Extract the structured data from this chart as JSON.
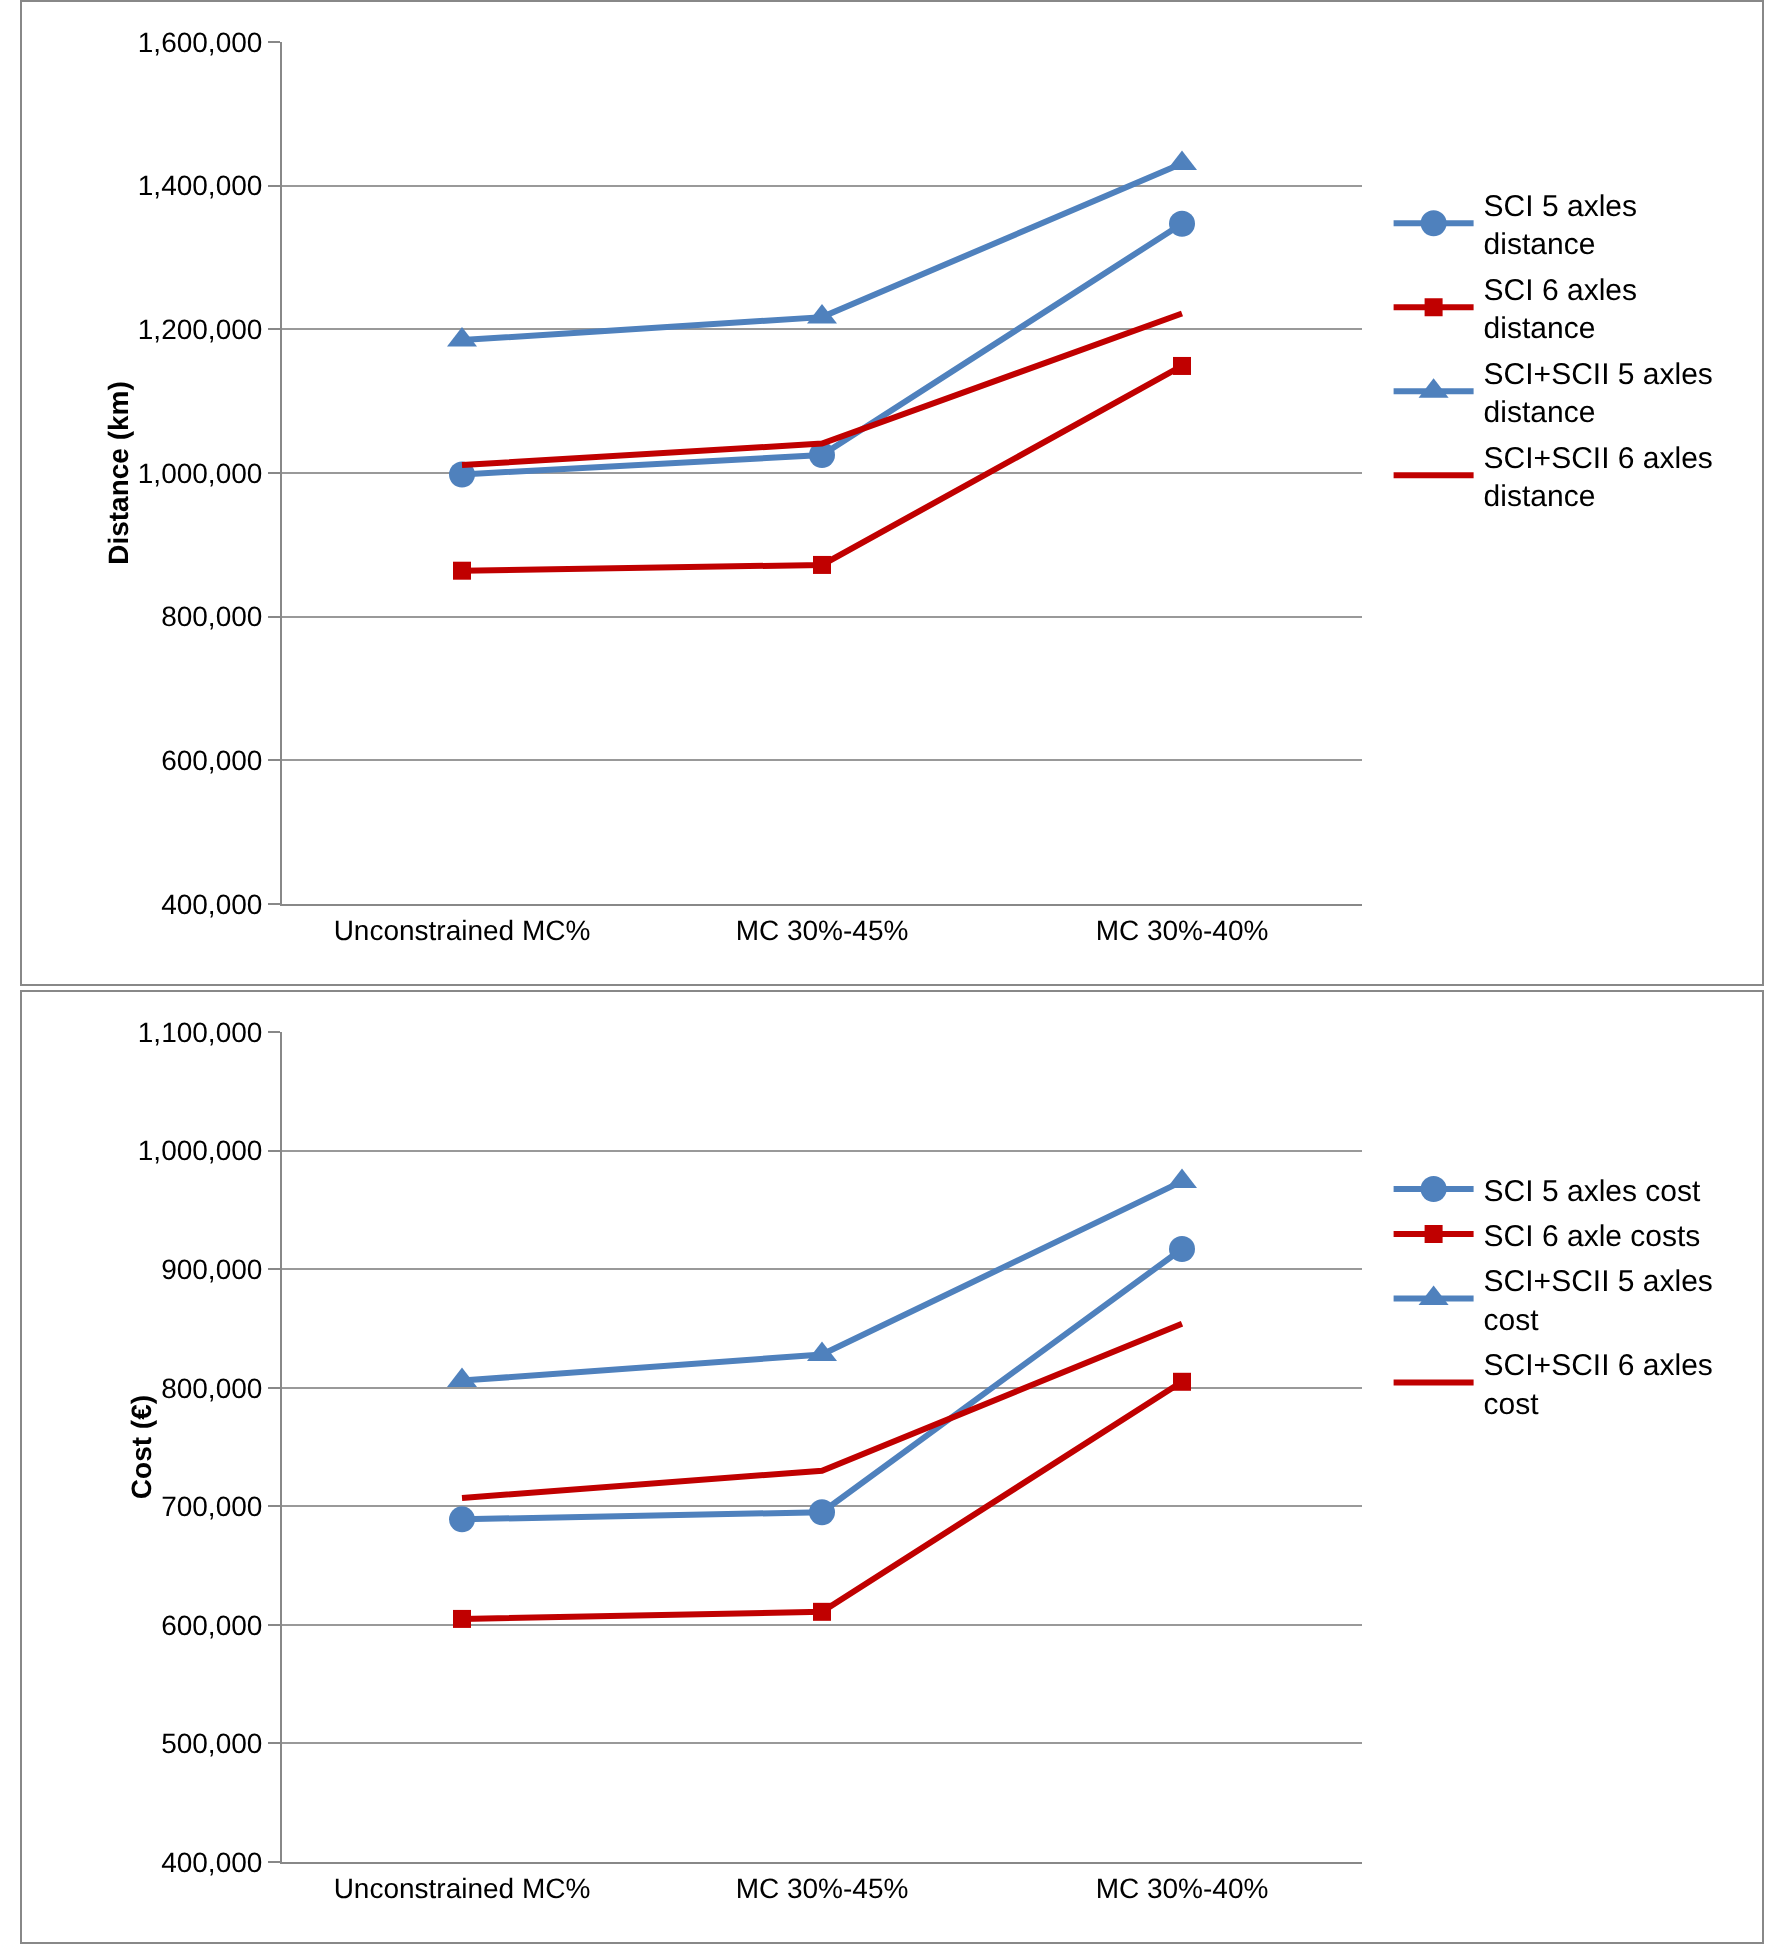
{
  "chart_data": [
    {
      "type": "line",
      "ylabel": "Distance (km)",
      "categories": [
        "Unconstrained MC%",
        "MC 30%-45%",
        "MC 30%-40%"
      ],
      "ylim": [
        400000,
        1600000
      ],
      "yticks": [
        {
          "value": 400000,
          "label": "400,000"
        },
        {
          "value": 600000,
          "label": "600,000"
        },
        {
          "value": 800000,
          "label": "800,000"
        },
        {
          "value": 1000000,
          "label": "1,000,000"
        },
        {
          "value": 1200000,
          "label": "1,200,000"
        },
        {
          "value": 1400000,
          "label": "1,400,000"
        },
        {
          "value": 1600000,
          "label": "1,600,000"
        }
      ],
      "grid": "y",
      "legend": "right",
      "series": [
        {
          "name": "SCI 5 axles distance",
          "color": "#4f81bd",
          "marker": "circle",
          "values": [
            998000,
            1025000,
            1347000
          ]
        },
        {
          "name": "SCI 6 axles distance",
          "color": "#c00000",
          "marker": "square",
          "values": [
            864000,
            872000,
            1149000
          ]
        },
        {
          "name": "SCI+SCII 5 axles distance",
          "color": "#4f81bd",
          "marker": "triangle",
          "values": [
            1185000,
            1217000,
            1431000
          ]
        },
        {
          "name": "SCI+SCII 6 axles distance",
          "color": "#c00000",
          "marker": "none",
          "values": [
            1011000,
            1041000,
            1222000
          ]
        }
      ]
    },
    {
      "type": "line",
      "ylabel": "Cost (€)",
      "categories": [
        "Unconstrained MC%",
        "MC 30%-45%",
        "MC 30%-40%"
      ],
      "ylim": [
        400000,
        1100000
      ],
      "yticks": [
        {
          "value": 400000,
          "label": "400,000"
        },
        {
          "value": 500000,
          "label": "500,000"
        },
        {
          "value": 600000,
          "label": "600,000"
        },
        {
          "value": 700000,
          "label": "700,000"
        },
        {
          "value": 800000,
          "label": "800,000"
        },
        {
          "value": 900000,
          "label": "900,000"
        },
        {
          "value": 1000000,
          "label": "1,000,000"
        },
        {
          "value": 1100000,
          "label": "1,100,000"
        }
      ],
      "grid": "y",
      "legend": "right",
      "series": [
        {
          "name": "SCI 5 axles cost",
          "color": "#4f81bd",
          "marker": "circle",
          "values": [
            689000,
            695000,
            917000
          ]
        },
        {
          "name": "SCI 6 axle costs",
          "color": "#c00000",
          "marker": "square",
          "values": [
            605000,
            611000,
            805000
          ]
        },
        {
          "name": "SCI+SCII 5 axles cost",
          "color": "#4f81bd",
          "marker": "triangle",
          "values": [
            806000,
            828000,
            974000
          ]
        },
        {
          "name": "SCI+SCII 6 axles cost",
          "color": "#c00000",
          "marker": "none",
          "values": [
            707000,
            730000,
            854000
          ]
        }
      ]
    }
  ]
}
